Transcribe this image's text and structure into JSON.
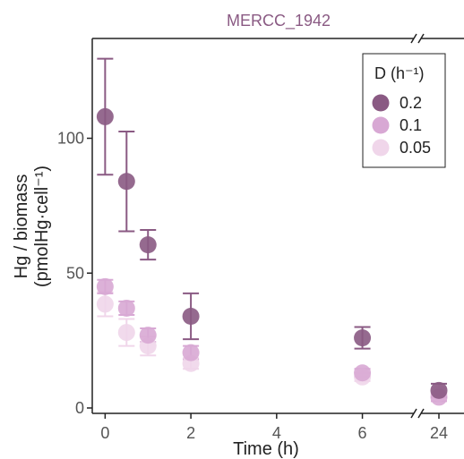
{
  "chart_data": {
    "type": "scatter",
    "title": "MERCC_1942",
    "xlabel": "Time (h)",
    "ylabel_line1": "Hg / biomass",
    "ylabel_line2": "(pmolHg·cell⁻¹)",
    "x_ticks": [
      0,
      2,
      4,
      6,
      24
    ],
    "x_tick_labels": [
      "0",
      "2",
      "4",
      "6",
      "24"
    ],
    "x_range": [
      -0.3,
      7.2
    ],
    "x_break": "between 6 and 24",
    "y_ticks": [
      0,
      50,
      100
    ],
    "y_tick_labels": [
      "0",
      "50",
      "100"
    ],
    "ylim": [
      -2,
      137
    ],
    "grid": false,
    "legend": {
      "title": "D (h⁻¹)",
      "placement": "top-right"
    },
    "series": [
      {
        "name": "0.2",
        "color": "#8a5a83",
        "points": [
          {
            "x": 0,
            "y": 108,
            "err": 21.5
          },
          {
            "x": 0.5,
            "y": 84,
            "err": 18.5
          },
          {
            "x": 1,
            "y": 60.5,
            "err": 5.5
          },
          {
            "x": 2,
            "y": 34,
            "err": 8.5
          },
          {
            "x": 6,
            "y": 26,
            "err": 4
          },
          {
            "x": 24,
            "y": 6.5,
            "err": 2.5
          }
        ]
      },
      {
        "name": "0.1",
        "color": "#d8a8d4",
        "points": [
          {
            "x": 0,
            "y": 45,
            "err": 2.5
          },
          {
            "x": 0.5,
            "y": 37,
            "err": 2.5
          },
          {
            "x": 1,
            "y": 27,
            "err": 2.5
          },
          {
            "x": 2,
            "y": 20.5,
            "err": 2.5
          },
          {
            "x": 6,
            "y": 13,
            "err": 1.5
          },
          {
            "x": 24,
            "y": 4,
            "err": 1.5
          }
        ]
      },
      {
        "name": "0.05",
        "color": "#f0d6ea",
        "points": [
          {
            "x": 0,
            "y": 38.5,
            "err": 4.5
          },
          {
            "x": 0.5,
            "y": 28,
            "err": 5
          },
          {
            "x": 1,
            "y": 23,
            "err": 3.5
          },
          {
            "x": 2,
            "y": 16.5,
            "err": 2
          },
          {
            "x": 6,
            "y": 11.5,
            "err": 1.5
          },
          {
            "x": 24,
            "y": 5.5,
            "err": 2
          }
        ]
      }
    ]
  }
}
